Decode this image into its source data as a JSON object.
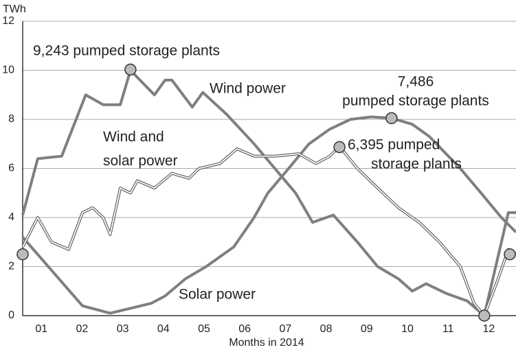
{
  "chart_data": {
    "type": "line",
    "y_unit": "TWh",
    "x_label": "Months in 2014",
    "xlim": [
      1.04,
      13.17
    ],
    "ylim": [
      0,
      12
    ],
    "yticks": [
      0,
      2,
      4,
      6,
      8,
      10,
      12
    ],
    "xticks": [
      {
        "value": 1.5,
        "label": "01"
      },
      {
        "value": 2.5,
        "label": "02"
      },
      {
        "value": 3.5,
        "label": "03"
      },
      {
        "value": 4.5,
        "label": "04"
      },
      {
        "value": 5.5,
        "label": "05"
      },
      {
        "value": 6.5,
        "label": "06"
      },
      {
        "value": 7.5,
        "label": "07"
      },
      {
        "value": 8.5,
        "label": "08"
      },
      {
        "value": 9.5,
        "label": "09"
      },
      {
        "value": 10.5,
        "label": "10"
      },
      {
        "value": 11.5,
        "label": "11"
      },
      {
        "value": 12.5,
        "label": "12"
      }
    ],
    "grid": true,
    "series": [
      {
        "name": "Wind power",
        "color": "#7f7f7f",
        "style": "thick",
        "x": [
          1.04,
          1.41,
          2.0,
          2.59,
          3.02,
          3.44,
          3.69,
          4.28,
          4.54,
          4.71,
          5.21,
          5.47,
          6.06,
          6.73,
          7.24,
          7.75,
          8.17,
          8.68,
          9.27,
          9.77,
          10.28,
          10.62,
          10.96,
          11.46,
          11.97,
          12.39,
          12.98,
          13.17
        ],
        "values": [
          4.1,
          6.4,
          6.5,
          9.0,
          8.6,
          8.6,
          10.0,
          9.0,
          9.6,
          9.6,
          8.5,
          9.1,
          8.2,
          7.0,
          6.0,
          5.0,
          3.8,
          4.1,
          3.0,
          2.0,
          1.5,
          1.0,
          1.3,
          0.9,
          0.6,
          0.0,
          4.2,
          4.2
        ]
      },
      {
        "name": "Solar power",
        "color": "#7f7f7f",
        "style": "thick",
        "x": [
          1.04,
          2.51,
          3.19,
          3.69,
          4.2,
          4.54,
          5.04,
          5.55,
          6.23,
          6.73,
          7.07,
          7.58,
          8.08,
          8.59,
          9.1,
          9.6,
          10.11,
          10.62,
          11.04,
          11.8,
          12.31,
          12.81,
          13.17
        ],
        "values": [
          3.2,
          0.4,
          0.1,
          0.3,
          0.5,
          0.8,
          1.5,
          2.0,
          2.8,
          4.0,
          5.0,
          6.0,
          7.0,
          7.6,
          8.0,
          8.1,
          8.05,
          7.8,
          7.3,
          6.0,
          5.0,
          4.0,
          3.4
        ]
      },
      {
        "name": "Wind and solar power",
        "color": "#ffffff",
        "outline": "#555555",
        "style": "double",
        "x": [
          1.04,
          1.41,
          1.75,
          2.17,
          2.51,
          2.76,
          3.02,
          3.19,
          3.44,
          3.69,
          3.86,
          4.28,
          4.71,
          5.13,
          5.38,
          5.89,
          6.31,
          6.73,
          7.24,
          7.83,
          8.25,
          8.59,
          8.83,
          9.27,
          9.77,
          10.28,
          10.79,
          11.29,
          11.8,
          12.14,
          12.39,
          12.73,
          12.98,
          13.17
        ],
        "values": [
          2.8,
          4.0,
          3.0,
          2.7,
          4.2,
          4.4,
          4.0,
          3.3,
          5.2,
          5.0,
          5.5,
          5.2,
          5.8,
          5.6,
          6.0,
          6.2,
          6.8,
          6.5,
          6.5,
          6.6,
          6.2,
          6.5,
          6.9,
          6.0,
          5.2,
          4.4,
          3.8,
          3.0,
          2.0,
          0.5,
          0.0,
          1.5,
          2.7,
          2.5
        ]
      }
    ],
    "annotations": [
      {
        "text": [
          "9,243 pumped storage plants"
        ],
        "x": 3.69,
        "y": 10.03
      },
      {
        "text": [
          "7,486",
          "pumped storage plants"
        ],
        "x": 10.11,
        "y": 8.05
      },
      {
        "text": [
          "6,395 pumped",
          "storage plants"
        ],
        "x": 8.83,
        "y": 6.87
      }
    ],
    "markers": [
      {
        "x": 1.04,
        "y": 2.5
      },
      {
        "x": 12.39,
        "y": 0
      },
      {
        "x": 13.12,
        "y": 2.5
      }
    ]
  }
}
